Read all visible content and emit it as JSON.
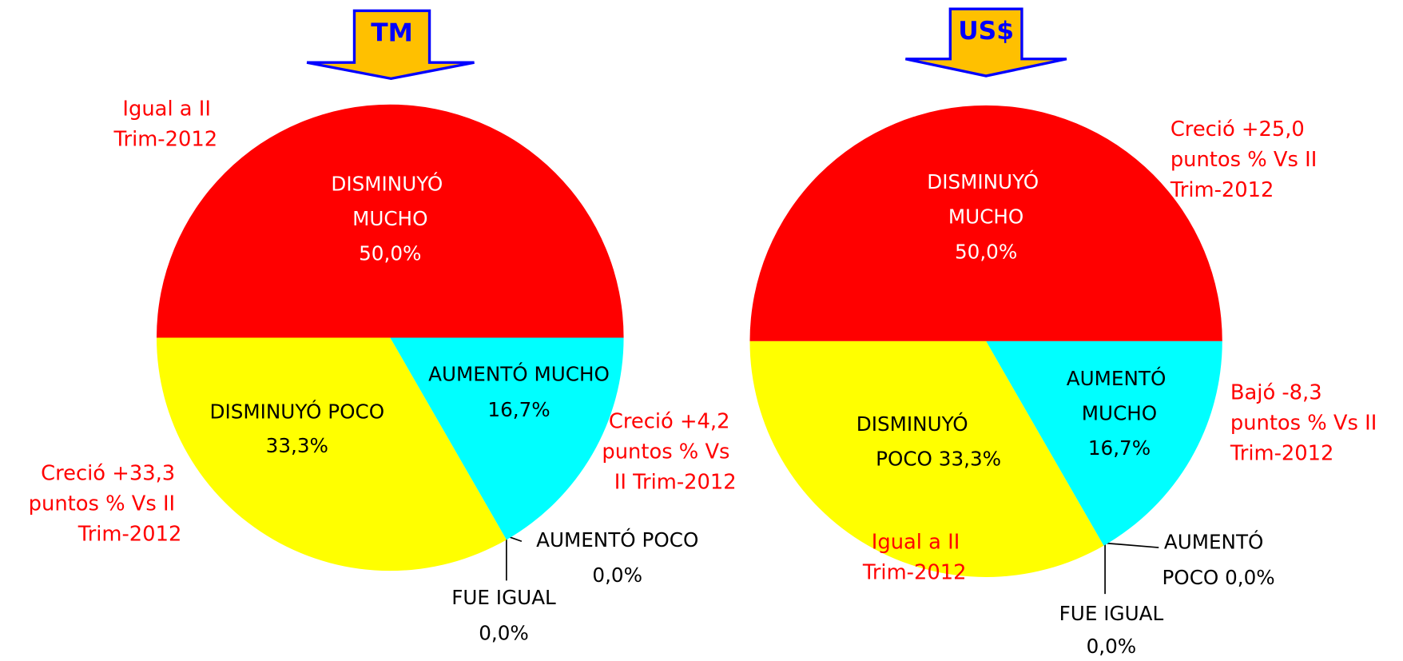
{
  "chart_data": [
    {
      "type": "pie",
      "title": "TM",
      "categories": [
        "DISMINUYÓ MUCHO",
        "AUMENTÓ MUCHO",
        "AUMENTÓ POCO",
        "FUE IGUAL",
        "DISMINUYÓ POCO"
      ],
      "values": [
        50.0,
        16.7,
        0.0,
        0.0,
        33.3
      ],
      "value_labels": [
        "50,0%",
        "16,7%",
        "0,0%",
        "0,0%",
        "33,3%"
      ],
      "colors": [
        "#ff0000",
        "#00ffff",
        "#00ffff",
        "#ffff00",
        "#ffff00"
      ],
      "annotations": [
        "Igual a II Trim-2012",
        "Creció +4,2 puntos % Vs II Trim-2012",
        "Creció +33,3 puntos % Vs II Trim-2012"
      ]
    },
    {
      "type": "pie",
      "title": "US$",
      "categories": [
        "DISMINUYÓ MUCHO",
        "AUMENTÓ MUCHO",
        "AUMENTÓ POCO",
        "FUE IGUAL",
        "DISMINUYÓ POCO"
      ],
      "values": [
        50.0,
        16.7,
        0.0,
        0.0,
        33.3
      ],
      "value_labels": [
        "50,0%",
        "16,7%",
        "0,0%",
        "0,0%",
        "33,3%"
      ],
      "colors": [
        "#ff0000",
        "#00ffff",
        "#00ffff",
        "#ffff00",
        "#ffff00"
      ],
      "annotations": [
        "Creció +25,0 puntos % Vs II Trim-2012",
        "Bajó -8,3 puntos % Vs II Trim-2012",
        "Igual a II Trim-2012"
      ]
    }
  ]
}
